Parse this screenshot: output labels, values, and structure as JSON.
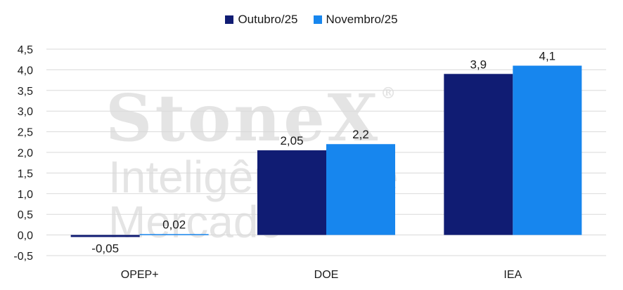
{
  "watermark": {
    "brand": "StoneX",
    "registered": "®",
    "tagline": "Inteligência de Mercado"
  },
  "chart_data": {
    "type": "bar",
    "categories": [
      "OPEP+",
      "DOE",
      "IEA"
    ],
    "series": [
      {
        "name": "Outubro/25",
        "color": "#101c73",
        "values": [
          -0.05,
          2.05,
          3.9
        ],
        "labels": [
          "-0,05",
          "2,05",
          "3,9"
        ]
      },
      {
        "name": "Novembro/25",
        "color": "#1786ee",
        "values": [
          0.02,
          2.2,
          4.1
        ],
        "labels": [
          "0,02",
          "2,2",
          "4,1"
        ]
      }
    ],
    "ylim": [
      -0.5,
      4.5
    ],
    "yticks": [
      -0.5,
      0.0,
      0.5,
      1.0,
      1.5,
      2.0,
      2.5,
      3.0,
      3.5,
      4.0,
      4.5
    ],
    "ytick_labels": [
      "-0,5",
      "0,0",
      "0,5",
      "1,0",
      "1,5",
      "2,0",
      "2,5",
      "3,0",
      "3,5",
      "4,0",
      "4,5"
    ],
    "grid": true,
    "legend": "top-center",
    "title": "",
    "xlabel": "",
    "ylabel": ""
  }
}
